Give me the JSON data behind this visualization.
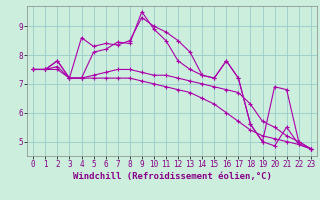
{
  "title": "",
  "xlabel": "Windchill (Refroidissement éolien,°C)",
  "background_color": "#cceedd",
  "line_color": "#aa00aa",
  "grid_color": "#99cccc",
  "x_values": [
    0,
    1,
    2,
    3,
    4,
    5,
    6,
    7,
    8,
    9,
    10,
    11,
    12,
    13,
    14,
    15,
    16,
    17,
    18,
    19,
    20,
    21,
    22,
    23
  ],
  "series1": [
    7.5,
    7.5,
    7.8,
    7.2,
    8.6,
    8.3,
    8.4,
    8.35,
    8.5,
    9.3,
    9.0,
    8.8,
    8.5,
    8.1,
    7.3,
    7.2,
    7.8,
    7.2,
    5.6,
    5.0,
    4.85,
    5.5,
    4.9,
    4.75
  ],
  "series2": [
    7.5,
    7.5,
    7.8,
    7.2,
    7.2,
    8.1,
    8.2,
    8.45,
    8.4,
    9.5,
    8.9,
    8.5,
    7.8,
    7.5,
    7.3,
    7.2,
    7.8,
    7.2,
    5.6,
    5.0,
    6.9,
    6.8,
    5.0,
    4.75
  ],
  "series3": [
    7.5,
    7.5,
    7.6,
    7.2,
    7.2,
    7.3,
    7.4,
    7.5,
    7.5,
    7.4,
    7.3,
    7.3,
    7.2,
    7.1,
    7.0,
    6.9,
    6.8,
    6.7,
    6.3,
    5.7,
    5.5,
    5.2,
    5.0,
    4.75
  ],
  "series4": [
    7.5,
    7.5,
    7.5,
    7.2,
    7.2,
    7.2,
    7.2,
    7.2,
    7.2,
    7.1,
    7.0,
    6.9,
    6.8,
    6.7,
    6.5,
    6.3,
    6.0,
    5.7,
    5.4,
    5.2,
    5.1,
    5.0,
    4.9,
    4.75
  ],
  "ylim": [
    4.5,
    9.7
  ],
  "yticks": [
    5,
    6,
    7,
    8,
    9
  ],
  "xticks": [
    0,
    1,
    2,
    3,
    4,
    5,
    6,
    7,
    8,
    9,
    10,
    11,
    12,
    13,
    14,
    15,
    16,
    17,
    18,
    19,
    20,
    21,
    22,
    23
  ],
  "marker": "+",
  "markersize": 3.5,
  "linewidth": 0.8,
  "tick_fontsize": 5.5,
  "label_fontsize": 6.5
}
